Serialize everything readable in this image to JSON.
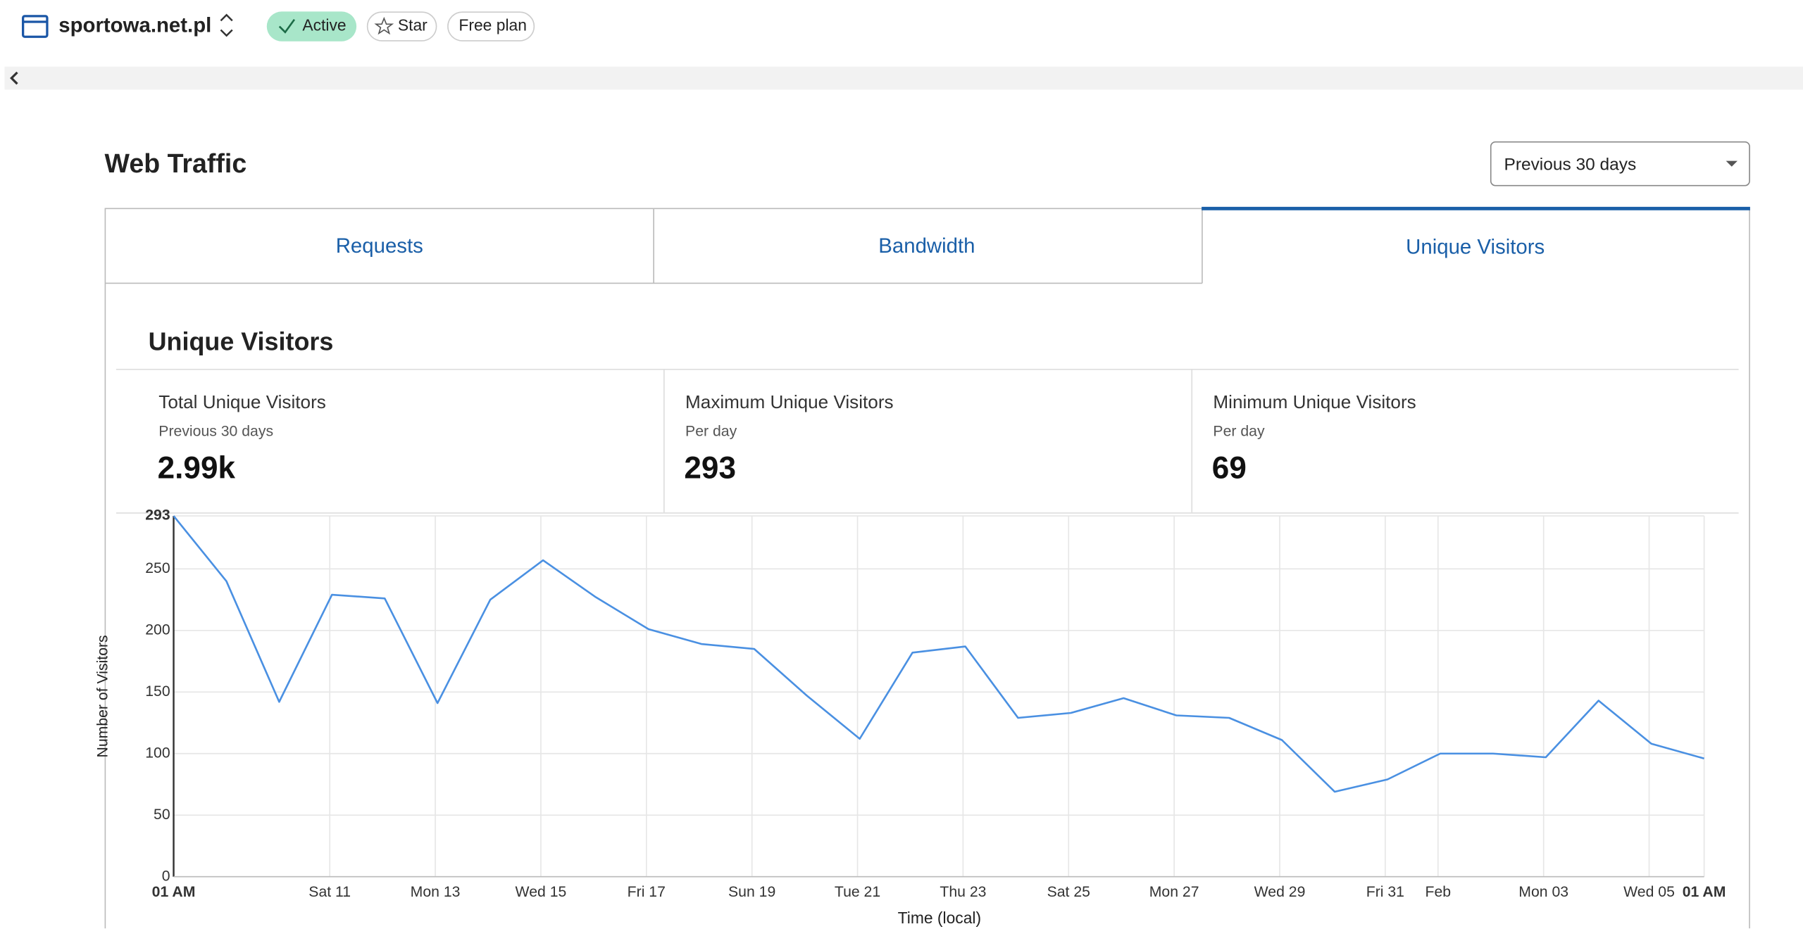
{
  "header": {
    "site": "sportowa.net.pl",
    "status": "Active",
    "star": "Star",
    "plan": "Free plan"
  },
  "section_title": "Web Traffic",
  "range_select": "Previous 30 days",
  "tabs": [
    "Requests",
    "Bandwidth",
    "Unique Visitors"
  ],
  "panel_title": "Unique Visitors",
  "stats": [
    {
      "label": "Total Unique Visitors",
      "sub": "Previous 30 days",
      "value": "2.99k"
    },
    {
      "label": "Maximum Unique Visitors",
      "sub": "Per day",
      "value": "293"
    },
    {
      "label": "Minimum Unique Visitors",
      "sub": "Per day",
      "value": "69"
    }
  ],
  "chart_data": {
    "type": "line",
    "y_label": "Number of Visitors",
    "x_label": "Time (local)",
    "x": [
      0,
      24,
      48,
      72,
      96,
      120,
      144,
      168,
      192,
      216,
      240,
      264,
      288,
      312,
      336,
      360,
      384,
      408,
      432,
      456,
      480,
      504,
      528,
      552,
      576,
      600,
      624,
      648,
      672,
      696
    ],
    "values": [
      293,
      240,
      142,
      229,
      226,
      141,
      225,
      257,
      227,
      201,
      189,
      185,
      147,
      112,
      182,
      187,
      129,
      133,
      145,
      131,
      129,
      111,
      69,
      79,
      100,
      100,
      97,
      143,
      108,
      96
    ],
    "color": "#4a90e2",
    "xlim": [
      0,
      696
    ],
    "xticks": [
      {
        "value": 0,
        "label": "01 AM"
      },
      {
        "value": 71,
        "label": "Sat 11"
      },
      {
        "value": 119,
        "label": "Mon 13"
      },
      {
        "value": 167,
        "label": "Wed 15"
      },
      {
        "value": 215,
        "label": "Fri 17"
      },
      {
        "value": 263,
        "label": "Sun 19"
      },
      {
        "value": 311,
        "label": "Tue 21"
      },
      {
        "value": 359,
        "label": "Thu 23"
      },
      {
        "value": 407,
        "label": "Sat 25"
      },
      {
        "value": 455,
        "label": "Mon 27"
      },
      {
        "value": 503,
        "label": "Wed 29"
      },
      {
        "value": 551,
        "label": "Fri 31"
      },
      {
        "value": 575,
        "label": "Feb"
      },
      {
        "value": 623,
        "label": "Mon 03"
      },
      {
        "value": 671,
        "label": "Wed 05"
      },
      {
        "value": 696,
        "label": "01 AM"
      }
    ],
    "ylim": [
      0,
      293
    ],
    "yticks": [
      0,
      50,
      100,
      150,
      200,
      250,
      293
    ],
    "grid": true
  }
}
